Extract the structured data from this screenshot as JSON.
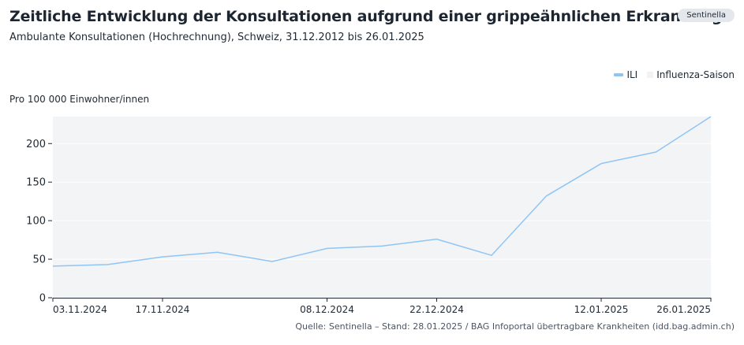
{
  "header": {
    "title": "Zeitliche Entwicklung der Konsultationen aufgrund einer grippeähnlichen Erkrankung",
    "subtitle": "Ambulante Konsultationen (Hochrechnung), Schweiz, 31.12.2012 bis 26.01.2025",
    "badge": "Sentinella"
  },
  "legend": {
    "ili": "ILI",
    "season": "Influenza-Saison"
  },
  "source": "Quelle: Sentinella – Stand: 28.01.2025 / BAG Infoportal übertragbare Krankheiten (idd.bag.admin.ch)",
  "colors": {
    "line": "#8fc5f5",
    "season_band": "#f3f4f6"
  },
  "chart_data": {
    "type": "line",
    "ylabel": "Pro 100 000 Einwohner/innen",
    "ylim": [
      0,
      235
    ],
    "yticks": [
      0,
      50,
      100,
      150,
      200
    ],
    "xticks": [
      "03.11.2024",
      "17.11.2024",
      "08.12.2024",
      "22.12.2024",
      "12.01.2025",
      "26.01.2025"
    ],
    "x": [
      "03.11.2024",
      "10.11.2024",
      "17.11.2024",
      "24.11.2024",
      "01.12.2024",
      "08.12.2024",
      "15.12.2024",
      "22.12.2024",
      "29.12.2024",
      "05.01.2025",
      "12.01.2025",
      "19.01.2025",
      "26.01.2025"
    ],
    "series": [
      {
        "name": "ILI",
        "values": [
          41,
          43,
          53,
          59,
          47,
          64,
          67,
          76,
          55,
          132,
          174,
          189,
          235
        ]
      }
    ],
    "grid": true,
    "legend_position": "top-right"
  }
}
